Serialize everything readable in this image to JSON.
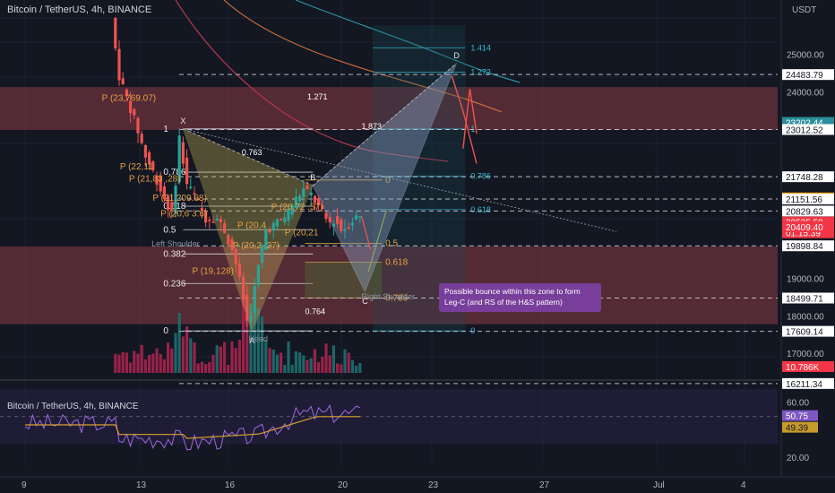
{
  "header": {
    "symbol_title": "Bitcoin / TetherUS, 4h, BINANCE",
    "currency": "USDT",
    "indicator_title": "Bitcoin / TetherUS, 4h, BINANCE"
  },
  "colors": {
    "background": "#131722",
    "up": "#26a69a",
    "down": "#ef5350",
    "vol_up": "#1f6f70",
    "vol_down": "#a8234e",
    "resistance_zone": "#8b3a45",
    "harmonic_yellow": "#c9b458",
    "harmonic_blue": "#8ea6c8",
    "fib_orange": "#e3a243",
    "teal": "#33b8cf",
    "purple": "#7b3fa0",
    "rsi_line": "#9c6ae0",
    "rsi_ma": "#d6a030",
    "sma_red": "#b5364b",
    "sma_orange": "#c86b3a",
    "sma_teal": "#2a8f9b"
  },
  "chart_data": {
    "type": "candlestick",
    "title": "Bitcoin / TetherUS, 4h, BINANCE",
    "timeframe": "4h",
    "exchange": "BINANCE",
    "x_ticks": [
      "9",
      "13",
      "16",
      "20",
      "23",
      "27",
      "Jul",
      "4"
    ],
    "y_ticks": [
      "25000.00",
      "24000.00",
      "19000.00",
      "18000.00",
      "17000.00"
    ],
    "ylim": [
      16400,
      26000
    ],
    "price_levels": [
      {
        "label": "24483.79",
        "value": 24483.79,
        "style": "dashed"
      },
      {
        "label": "23202.44",
        "value": 23202.44,
        "style": "badge-teal"
      },
      {
        "label": "23012.52",
        "value": 23012.52,
        "style": "dashed"
      },
      {
        "label": "21748.28",
        "value": 21748.28,
        "style": "dashed"
      },
      {
        "label": "21182.07",
        "value": 21182.07,
        "style": "badge-orange"
      },
      {
        "label": "21151.56",
        "value": 21151.56,
        "style": "dashed"
      },
      {
        "label": "20829.63",
        "value": 20829.63,
        "style": "dashed"
      },
      {
        "label": "20535.59",
        "value": 20535.59,
        "style": "badge-red",
        "sub": "01:15:39"
      },
      {
        "label": "20409.40",
        "value": 20409.4,
        "style": "badge-red"
      },
      {
        "label": "19898.84",
        "value": 19898.84,
        "style": "dashed"
      },
      {
        "label": "18499.71",
        "value": 18499.71,
        "style": "dashed"
      },
      {
        "label": "17609.14",
        "value": 17609.14,
        "style": "dashed"
      },
      {
        "label": "16211.34",
        "value": 16211.34,
        "style": "dashed"
      }
    ],
    "volume_badge": "10.786K",
    "resistance_zones": [
      [
        23000,
        24150
      ],
      [
        17800,
        19880
      ]
    ],
    "harmonic_points": [
      {
        "label": "X",
        "x": 16.0,
        "y": 23030
      },
      {
        "label": "A",
        "x": 19.05,
        "y": 17620
      },
      {
        "label": "B",
        "x": 21.75,
        "y": 21510
      },
      {
        "label": "C",
        "x": 24.05,
        "y": 18680
      },
      {
        "label": "D",
        "x": 28.1,
        "y": 24780
      }
    ],
    "fib_left": [
      {
        "label": "1",
        "value": 23030
      },
      {
        "label": "0.786",
        "value": 21870
      },
      {
        "label": "0.618",
        "value": 20960
      },
      {
        "label": "0.5",
        "value": 20330
      },
      {
        "label": "0.382",
        "value": 19680
      },
      {
        "label": "0.236",
        "value": 18890
      },
      {
        "label": "0",
        "value": 17620
      }
    ],
    "fib_right": [
      {
        "label": "1.414",
        "value": 25200
      },
      {
        "label": "1.272",
        "value": 24550
      },
      {
        "label": "1",
        "value": 23030
      },
      {
        "label": "0.786",
        "value": 21760
      },
      {
        "label": "0.618",
        "value": 20870
      },
      {
        "label": "0",
        "value": 17620
      }
    ],
    "fib_orange": [
      {
        "label": "0",
        "value": 21660
      },
      {
        "label": "0.5",
        "value": 19960
      },
      {
        "label": "0.618",
        "value": 19460
      },
      {
        "label": "0.786",
        "value": 18500
      }
    ],
    "ratios": [
      {
        "label": "1.271",
        "x": 21.5,
        "y": 23820
      },
      {
        "label": "1.873",
        "x": 23.9,
        "y": 23030
      },
      {
        "label": "0.763",
        "x": 18.6,
        "y": 22330
      },
      {
        "label": "0.764",
        "x": 21.4,
        "y": 18070
      }
    ],
    "pivots": [
      {
        "label": "P (23,769.07)",
        "x": 12.4,
        "y": 23780
      },
      {
        "label": "P (22,11",
        "x": 13.2,
        "y": 21940
      },
      {
        "label": "P (21,83 ,28)",
        "x": 13.6,
        "y": 21620
      },
      {
        "label": "P (21,209.68)",
        "x": 14.65,
        "y": 21100
      },
      {
        "label": "P (20,6 3.6)",
        "x": 15.0,
        "y": 20690
      },
      {
        "label": "P (19,128)",
        "x": 16.4,
        "y": 19150
      },
      {
        "label": "P (20,4",
        "x": 18.4,
        "y": 20370
      },
      {
        "label": "P (20,21",
        "x": 20.5,
        "y": 20180
      },
      {
        "label": "P (20,2 .27)",
        "x": 18.2,
        "y": 19830
      },
      {
        "label": "P (20,72 .57)",
        "x": 19.9,
        "y": 20870
      }
    ],
    "pattern_labels": [
      {
        "label": "Left Shoulder",
        "x": 14.6,
        "y": 19880
      },
      {
        "label": "Head",
        "x": 18.9,
        "y": 17340
      },
      {
        "label": "Right Shoulder",
        "x": 23.9,
        "y": 18470
      }
    ],
    "annotation": "Possible bounce within this zone to form Leg-C (and RS of the H&S pattern)",
    "rsi": {
      "value_label": "50.75",
      "ma_label": "49.39",
      "ticks": [
        "60.00",
        "20.00"
      ],
      "ylim": [
        14,
        74
      ],
      "band": [
        30,
        70
      ]
    }
  }
}
